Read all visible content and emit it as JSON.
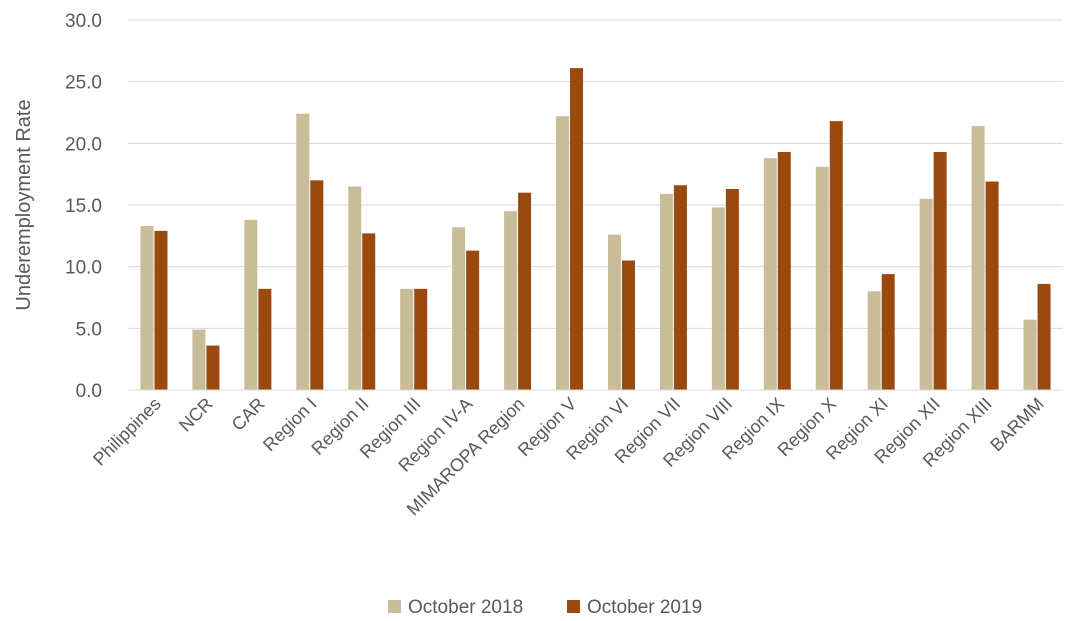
{
  "chart_data": {
    "type": "bar",
    "title": "",
    "xlabel": "",
    "ylabel": "Underemployment Rate",
    "ylim": [
      0,
      30
    ],
    "yticks": [
      "0.0",
      "5.0",
      "10.0",
      "15.0",
      "20.0",
      "25.0",
      "30.0"
    ],
    "grid": true,
    "legend_position": "bottom",
    "categories": [
      "Philippines",
      "NCR",
      "CAR",
      "Region I",
      "Region II",
      "Region III",
      "Region IV-A",
      "MIMAROPA Region",
      "Region V",
      "Region VI",
      "Region VII",
      "Region VIII",
      "Region IX",
      "Region X",
      "Region XI",
      "Region XII",
      "Region XIII",
      "BARMM"
    ],
    "series": [
      {
        "name": "October 2018",
        "color": "#c8bd98",
        "values": [
          13.3,
          4.9,
          13.8,
          22.4,
          16.5,
          8.2,
          13.2,
          14.5,
          22.2,
          12.6,
          15.9,
          14.8,
          18.8,
          18.1,
          8.0,
          15.5,
          21.4,
          5.7
        ]
      },
      {
        "name": "October 2019",
        "color": "#9a4a0e",
        "values": [
          12.9,
          3.6,
          8.2,
          17.0,
          12.7,
          8.2,
          11.3,
          16.0,
          26.1,
          10.5,
          16.6,
          16.3,
          19.3,
          21.8,
          9.4,
          19.3,
          16.9,
          8.6
        ]
      }
    ]
  }
}
